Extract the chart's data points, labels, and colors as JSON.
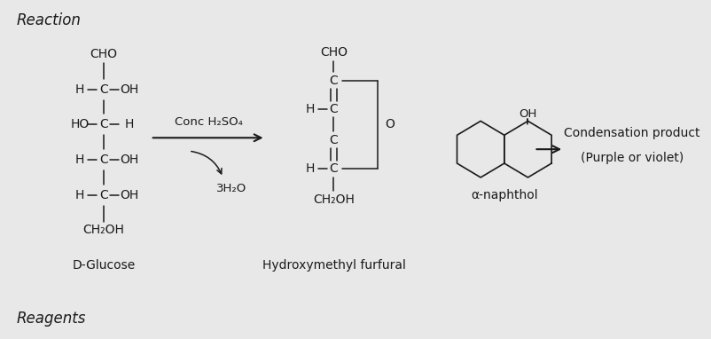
{
  "bg_color": "#e8e8e8",
  "title": "Reaction",
  "reagents_label": "Reagents",
  "font_color": "#1a1a1a",
  "glucose_label": "D-Glucose",
  "hmf_label": "Hydroxymethyl furfural",
  "condensation_label1": "Condensation product",
  "condensation_label2": "(Purple or violet)",
  "alpha_naphthol_label": "α-naphthol",
  "reagent_arrow_label1": "Conc H₂SO₄",
  "reagent_arrow_label2": "3H₂O"
}
